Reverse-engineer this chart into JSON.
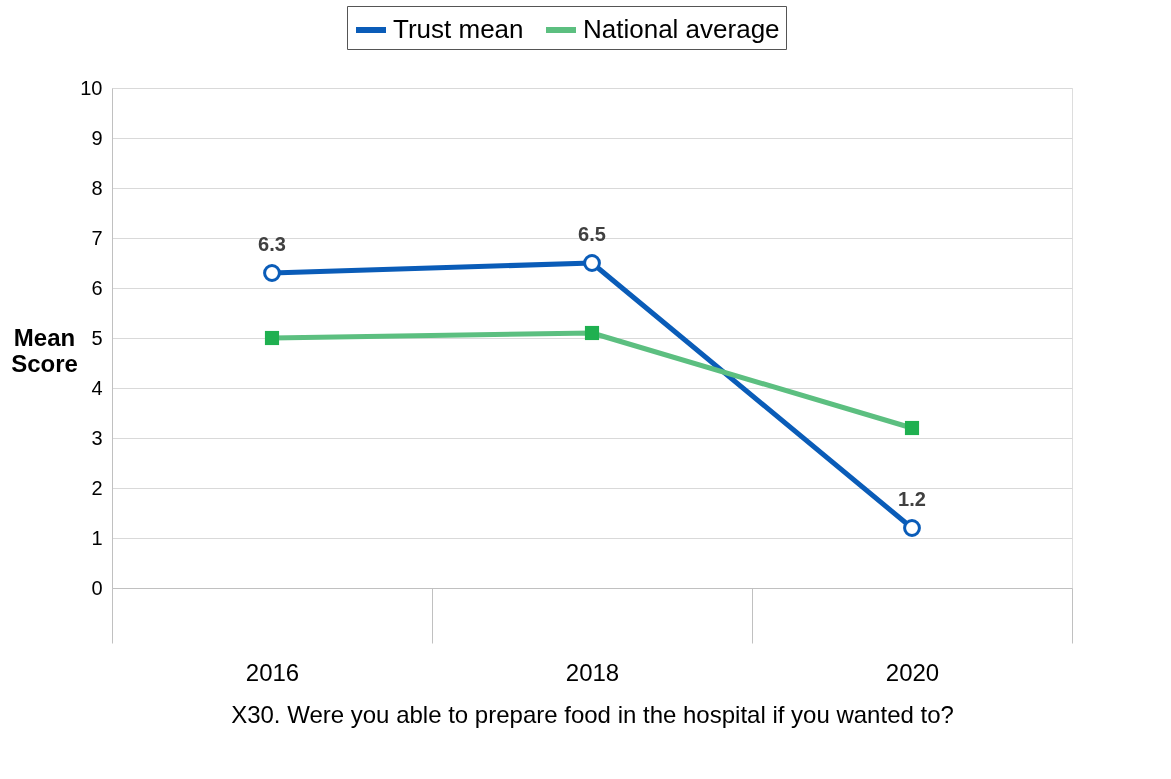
{
  "chart_data": {
    "type": "line",
    "xlabel": "X30. Were you able to prepare food in the hospital if you wanted to?",
    "ylabel": "Mean Score",
    "categories": [
      "2016",
      "2018",
      "2020"
    ],
    "series": [
      {
        "name": "Trust mean",
        "color": "#0a5cb8",
        "values": [
          6.3,
          6.5,
          1.2
        ],
        "marker": "circle",
        "value_labels": [
          "6.3",
          "6.5",
          "1.2"
        ]
      },
      {
        "name": "National average",
        "color": "#5cbf80",
        "values": [
          5.0,
          5.1,
          3.2
        ],
        "marker": "square"
      }
    ],
    "ylim": [
      0,
      10
    ],
    "yticks": [
      0,
      1,
      2,
      3,
      4,
      5,
      6,
      7,
      8,
      9,
      10
    ],
    "grid": "y",
    "legend": "top",
    "line_style": "solid"
  }
}
